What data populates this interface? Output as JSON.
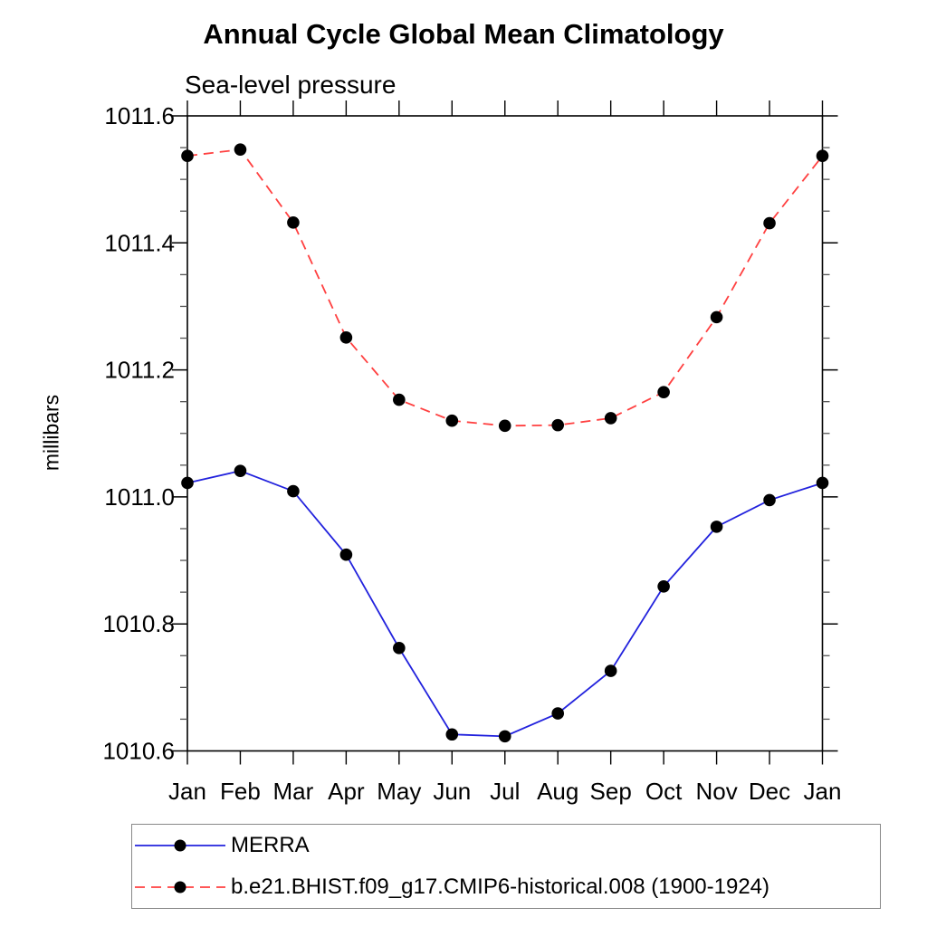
{
  "chart_data": {
    "type": "line",
    "title": "Annual Cycle Global Mean Climatology",
    "subtitle": "Sea-level pressure",
    "ylabel": "millibars",
    "xlabel": "",
    "categories": [
      "Jan",
      "Feb",
      "Mar",
      "Apr",
      "May",
      "Jun",
      "Jul",
      "Aug",
      "Sep",
      "Oct",
      "Nov",
      "Dec",
      "Jan"
    ],
    "series": [
      {
        "name": "MERRA",
        "color": "#2222dd",
        "line_style": "solid",
        "marker": "circle",
        "marker_color": "#000000",
        "values": [
          1011.022,
          1011.041,
          1011.009,
          1010.909,
          1010.762,
          1010.626,
          1010.623,
          1010.659,
          1010.726,
          1010.859,
          1010.953,
          1010.995,
          1011.022
        ]
      },
      {
        "name": "b.e21.BHIST.f09_g17.CMIP6-historical.008 (1900-1924)",
        "color": "#ff4040",
        "line_style": "dashed",
        "marker": "circle",
        "marker_color": "#000000",
        "values": [
          1011.537,
          1011.547,
          1011.432,
          1011.251,
          1011.153,
          1011.12,
          1011.112,
          1011.113,
          1011.124,
          1011.165,
          1011.283,
          1011.431,
          1011.537
        ]
      }
    ],
    "ylim": [
      1010.6,
      1011.6
    ],
    "y_ticks": [
      1010.6,
      1010.8,
      1011.0,
      1011.2,
      1011.4,
      1011.6
    ],
    "y_tick_labels": [
      "1010.6",
      "1010.8",
      "1011.0",
      "1011.2",
      "1011.4",
      "1011.6"
    ],
    "y_minor_step": 0.05,
    "grid": false,
    "legend_position": "bottom-left",
    "axis_color": "#000000",
    "minor_tick_color": "#555555",
    "legend_border_color": "#888888"
  }
}
